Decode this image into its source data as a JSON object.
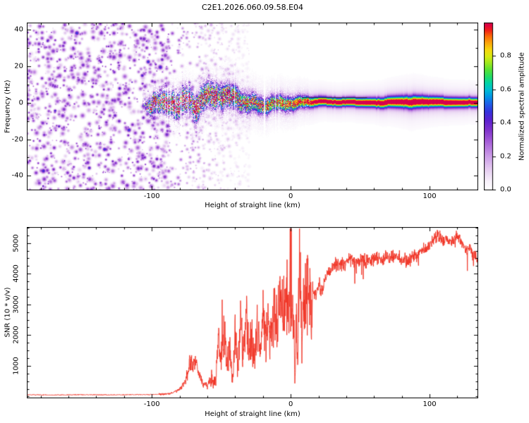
{
  "figure": {
    "title": "C2E1.2026.060.09.58.E04",
    "background": "#ffffff",
    "axis_color": "#000000"
  },
  "chart_data": [
    {
      "type": "heatmap",
      "title": "C2E1.2026.060.09.58.E04",
      "xlabel": "Height of straight line (km)",
      "ylabel": "Frequency (Hz)",
      "xlim": [
        -190,
        135
      ],
      "ylim": [
        -48,
        44
      ],
      "xticks": [
        -100,
        0,
        100
      ],
      "xtick_labels": [
        "-100",
        "0",
        "100"
      ],
      "x_minor_step": 20,
      "yticks": [
        40,
        20,
        0,
        -20,
        -40
      ],
      "ytick_labels": [
        "40",
        "20",
        "0",
        "-20",
        "-40"
      ],
      "y_minor_step": 10,
      "colorbar": {
        "label": "Normalized spectral amplitude",
        "range": [
          0,
          1
        ],
        "ticks": [
          0,
          0.2,
          0.4,
          0.6,
          0.8
        ],
        "tick_labels": [
          "0.0",
          "0.2",
          "0.4",
          "0.6",
          "0.8"
        ]
      },
      "colormap_stops": [
        [
          0.0,
          "#ffffff"
        ],
        [
          0.05,
          "#f8f2fb"
        ],
        [
          0.13,
          "#e4c9f0"
        ],
        [
          0.21,
          "#c897e6"
        ],
        [
          0.29,
          "#a65ed8"
        ],
        [
          0.36,
          "#7f33cc"
        ],
        [
          0.42,
          "#5a21cf"
        ],
        [
          0.47,
          "#3433dd"
        ],
        [
          0.52,
          "#1c64e8"
        ],
        [
          0.56,
          "#0096e6"
        ],
        [
          0.6,
          "#00bed2"
        ],
        [
          0.64,
          "#00d4a6"
        ],
        [
          0.68,
          "#25dc63"
        ],
        [
          0.72,
          "#58e134"
        ],
        [
          0.76,
          "#9de81e"
        ],
        [
          0.8,
          "#d9ea12"
        ],
        [
          0.84,
          "#f6d70d"
        ],
        [
          0.88,
          "#fba50a"
        ],
        [
          0.92,
          "#fa6a08"
        ],
        [
          0.955,
          "#f22017"
        ],
        [
          0.985,
          "#df0340"
        ],
        [
          1.0,
          "#d6004e"
        ]
      ],
      "noise_field": {
        "dense_x_end": -88,
        "fade_x_end": -30,
        "density": 0.082,
        "value_min": 0.1,
        "value_max": 0.4,
        "fade_count": 650,
        "seed": 91
      },
      "band_profile": [
        [
          -107,
          0.0,
          2.0,
          0.0,
          0.95
        ],
        [
          -103,
          0.5,
          2.4,
          0.4,
          0.95
        ],
        [
          -98,
          1.0,
          3.2,
          0.6,
          0.92
        ],
        [
          -92,
          -0.5,
          3.6,
          0.63,
          0.92
        ],
        [
          -86,
          1.5,
          3.8,
          0.66,
          0.9
        ],
        [
          -80,
          0.5,
          4.0,
          0.68,
          0.88
        ],
        [
          -74,
          2.5,
          4.2,
          0.7,
          0.86
        ],
        [
          -68,
          -1.0,
          4.0,
          0.7,
          0.85
        ],
        [
          -62,
          2.0,
          4.2,
          0.72,
          0.82
        ],
        [
          -56,
          3.5,
          4.0,
          0.74,
          0.8
        ],
        [
          -50,
          4.0,
          3.8,
          0.78,
          0.72
        ],
        [
          -44,
          3.0,
          3.6,
          0.78,
          0.68
        ],
        [
          -38,
          1.5,
          3.4,
          0.78,
          0.62
        ],
        [
          -32,
          0.0,
          3.2,
          0.76,
          0.55
        ],
        [
          -26,
          -0.5,
          3.0,
          0.78,
          0.5
        ],
        [
          -20,
          -0.5,
          2.8,
          0.8,
          0.45
        ],
        [
          -14,
          0.0,
          2.6,
          0.8,
          0.42
        ],
        [
          -8,
          0.0,
          2.5,
          0.82,
          0.38
        ],
        [
          -2,
          0.0,
          2.4,
          0.84,
          0.34
        ],
        [
          4,
          0.3,
          2.2,
          0.86,
          0.28
        ],
        [
          10,
          0.5,
          2.0,
          0.9,
          0.22
        ],
        [
          16,
          0.5,
          1.8,
          0.94,
          0.14
        ],
        [
          24,
          0.5,
          1.6,
          0.98,
          0.08
        ],
        [
          40,
          0.5,
          1.55,
          1.0,
          0.06
        ],
        [
          60,
          0.5,
          1.7,
          1.0,
          0.06
        ],
        [
          75,
          0.5,
          2.0,
          1.0,
          0.08
        ],
        [
          88,
          0.5,
          2.3,
          1.0,
          0.1
        ],
        [
          100,
          0.5,
          2.0,
          1.0,
          0.07
        ],
        [
          115,
          0.5,
          1.8,
          1.0,
          0.06
        ],
        [
          135,
          0.5,
          1.7,
          0.97,
          0.06
        ]
      ],
      "red_dots": {
        "count": 15,
        "x_min": -48,
        "x_max": 16,
        "value": 0.96
      },
      "dark_line": {
        "x0": 8,
        "x1": 55,
        "freq": 3.2,
        "color": "#222222"
      }
    },
    {
      "type": "line",
      "xlabel": "Height of straight line (km)",
      "ylabel": "SNR (10 * v/v)",
      "color": "#f03224",
      "xlim": [
        -190,
        135
      ],
      "ylim": [
        -60,
        5520
      ],
      "xticks": [
        -100,
        0,
        100
      ],
      "xtick_labels": [
        "-100",
        "0",
        "100"
      ],
      "x_minor_step": 20,
      "yticks": [
        5000,
        4000,
        3000,
        2000,
        1000
      ],
      "ytick_labels": [
        "5000",
        "4000",
        "3000",
        "2000",
        "1000"
      ],
      "y_minor_step": 250,
      "seed": 55,
      "x": [
        -190,
        -170,
        -150,
        -130,
        -115,
        -105,
        -98,
        -92,
        -87,
        -82,
        -79,
        -76,
        -74,
        -72,
        -70,
        -68,
        -66,
        -64,
        -62,
        -60,
        -58,
        -56,
        -54,
        -52,
        -50,
        -48,
        -46,
        -44,
        -42,
        -40,
        -38,
        -36,
        -34,
        -32,
        -30,
        -28,
        -26,
        -24,
        -22,
        -20,
        -18,
        -16,
        -14,
        -12,
        -10,
        -8,
        -6,
        -4,
        -2,
        0,
        2,
        3,
        4,
        5,
        6,
        7,
        8,
        9,
        10,
        12,
        14,
        16,
        18,
        20,
        23,
        26,
        30,
        34,
        38,
        42,
        46,
        50,
        55,
        60,
        65,
        70,
        75,
        80,
        85,
        90,
        95,
        100,
        103,
        106,
        109,
        112,
        115,
        118,
        121,
        124,
        127,
        129,
        131,
        133,
        135
      ],
      "y": [
        55,
        50,
        58,
        52,
        60,
        58,
        65,
        75,
        95,
        180,
        280,
        520,
        820,
        1150,
        950,
        1120,
        700,
        480,
        400,
        360,
        560,
        430,
        520,
        1850,
        1250,
        2300,
        850,
        1550,
        520,
        2100,
        950,
        2500,
        1250,
        2700,
        1450,
        2050,
        950,
        2400,
        1550,
        2600,
        1750,
        2300,
        2050,
        2800,
        2450,
        3000,
        2650,
        3100,
        2750,
        3200,
        2950,
        420,
        2400,
        950,
        4200,
        4700,
        1500,
        3200,
        2950,
        3300,
        3050,
        3500,
        3250,
        3700,
        3500,
        4000,
        4200,
        4350,
        4250,
        4450,
        4350,
        4500,
        4400,
        4550,
        4450,
        4500,
        4600,
        4500,
        4450,
        4600,
        4750,
        4950,
        5100,
        5300,
        5050,
        5150,
        5000,
        5100,
        5200,
        5000,
        4700,
        4900,
        4500,
        4650,
        4250
      ],
      "noise_regions": [
        [
          -190,
          -95,
          12,
          0.08
        ],
        [
          -95,
          -76,
          30,
          0.2
        ],
        [
          -76,
          -58,
          60,
          0.3
        ],
        [
          -58,
          16,
          80,
          0.5
        ],
        [
          16,
          95,
          100,
          0.05
        ],
        [
          95,
          135,
          110,
          0.04
        ]
      ]
    }
  ]
}
